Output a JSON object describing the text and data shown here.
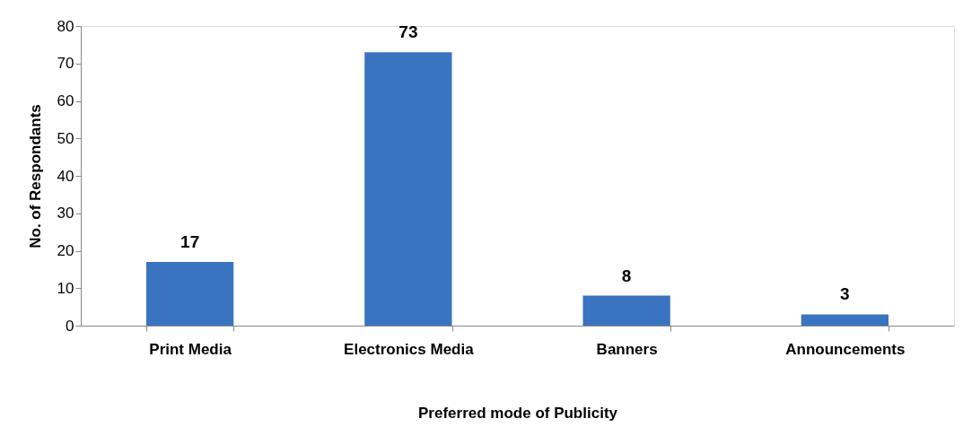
{
  "chart_data": {
    "type": "bar",
    "xlabel": "Preferred mode of Publicity",
    "ylabel": "No. of Respondants",
    "categories": [
      "Print Media",
      "Electronics Media",
      "Banners",
      "Announcements"
    ],
    "values": [
      17,
      73,
      8,
      3
    ],
    "color": "#3a74c0",
    "ylim": [
      0,
      80
    ],
    "yticks": [
      0,
      10,
      20,
      30,
      40,
      50,
      60,
      70,
      80
    ],
    "grid": false,
    "data_labels": true
  }
}
